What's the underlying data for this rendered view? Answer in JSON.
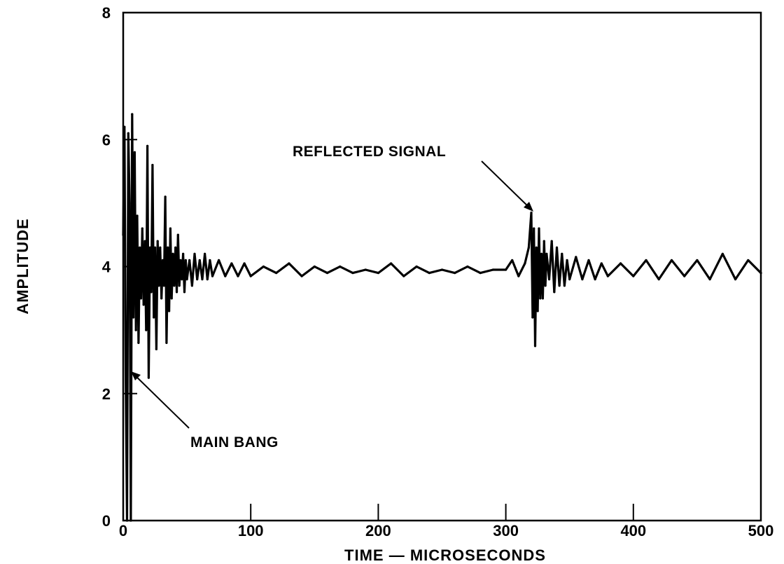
{
  "chart_data": {
    "type": "line",
    "title": "",
    "xlabel": "TIME — MICROSECONDS",
    "ylabel": "AMPLITUDE",
    "xlim": [
      0,
      500
    ],
    "ylim": [
      0,
      8
    ],
    "x_ticks": [
      0,
      100,
      200,
      300,
      400,
      500
    ],
    "x_tick_labels": [
      "0",
      "100",
      "200",
      "300",
      "400",
      "500"
    ],
    "y_ticks": [
      0,
      2,
      4,
      6,
      8
    ],
    "y_tick_labels": [
      "0",
      "2",
      "4",
      "6",
      "8"
    ],
    "grid": false,
    "legend": "none",
    "line_color": "#000000",
    "series": [
      {
        "x": [
          0,
          1,
          2,
          3,
          4,
          5,
          6,
          7,
          8,
          9,
          10,
          11,
          12,
          13,
          14,
          15,
          16,
          17,
          18,
          19,
          20,
          21,
          22,
          23,
          24,
          25,
          26,
          27,
          28,
          29,
          30,
          31,
          32,
          33,
          34,
          35,
          36,
          37,
          38,
          39,
          40,
          41,
          42,
          43,
          44,
          45,
          46,
          47,
          48,
          49,
          50,
          52,
          54,
          56,
          58,
          60,
          62,
          64,
          66,
          68,
          70,
          75,
          80,
          85,
          90,
          95,
          100,
          110,
          120,
          130,
          140,
          150,
          160,
          170,
          180,
          190,
          200,
          210,
          220,
          230,
          240,
          250,
          260,
          270,
          280,
          290,
          300,
          305,
          310,
          315,
          318,
          320,
          321,
          322,
          323,
          324,
          325,
          326,
          327,
          328,
          329,
          330,
          331,
          332,
          334,
          336,
          338,
          340,
          342,
          344,
          346,
          348,
          350,
          355,
          360,
          365,
          370,
          375,
          380,
          390,
          400,
          410,
          420,
          430,
          440,
          450,
          460,
          470,
          480,
          490,
          500
        ],
        "y": [
          4.5,
          6.2,
          2.3,
          0.0,
          6.1,
          5.0,
          0.0,
          6.4,
          3.2,
          5.8,
          3.0,
          4.8,
          2.8,
          4.3,
          3.5,
          4.6,
          3.4,
          4.4,
          3.0,
          5.9,
          2.25,
          4.3,
          3.6,
          5.6,
          3.2,
          4.3,
          2.7,
          4.4,
          3.7,
          4.3,
          3.5,
          4.1,
          3.7,
          5.1,
          2.8,
          4.3,
          3.3,
          4.6,
          3.5,
          4.2,
          3.7,
          4.3,
          3.6,
          4.5,
          3.7,
          4.1,
          3.8,
          4.2,
          3.6,
          4.1,
          3.8,
          4.1,
          3.7,
          4.2,
          3.8,
          4.1,
          3.8,
          4.2,
          3.8,
          4.1,
          3.85,
          4.1,
          3.85,
          4.05,
          3.85,
          4.05,
          3.85,
          4.0,
          3.9,
          4.05,
          3.85,
          4.0,
          3.9,
          4.0,
          3.9,
          3.95,
          3.9,
          4.05,
          3.85,
          4.0,
          3.9,
          3.95,
          3.9,
          4.0,
          3.9,
          3.95,
          3.95,
          4.1,
          3.85,
          4.05,
          4.3,
          4.85,
          3.2,
          4.6,
          2.75,
          4.3,
          3.3,
          4.6,
          3.5,
          4.2,
          3.5,
          4.4,
          3.7,
          4.2,
          3.8,
          4.4,
          3.6,
          4.3,
          3.7,
          4.2,
          3.7,
          4.1,
          3.8,
          4.15,
          3.8,
          4.1,
          3.8,
          4.05,
          3.85,
          4.05,
          3.85,
          4.1,
          3.8,
          4.1,
          3.85,
          4.1,
          3.8,
          4.2,
          3.8,
          4.1,
          3.9
        ]
      }
    ],
    "annotations": [
      {
        "text": "REFLECTED SIGNAL",
        "points_to": {
          "x": 319,
          "y": 4.85
        }
      },
      {
        "text": "MAIN BANG",
        "points_to": {
          "x": 5,
          "y": 2.35
        }
      }
    ]
  }
}
